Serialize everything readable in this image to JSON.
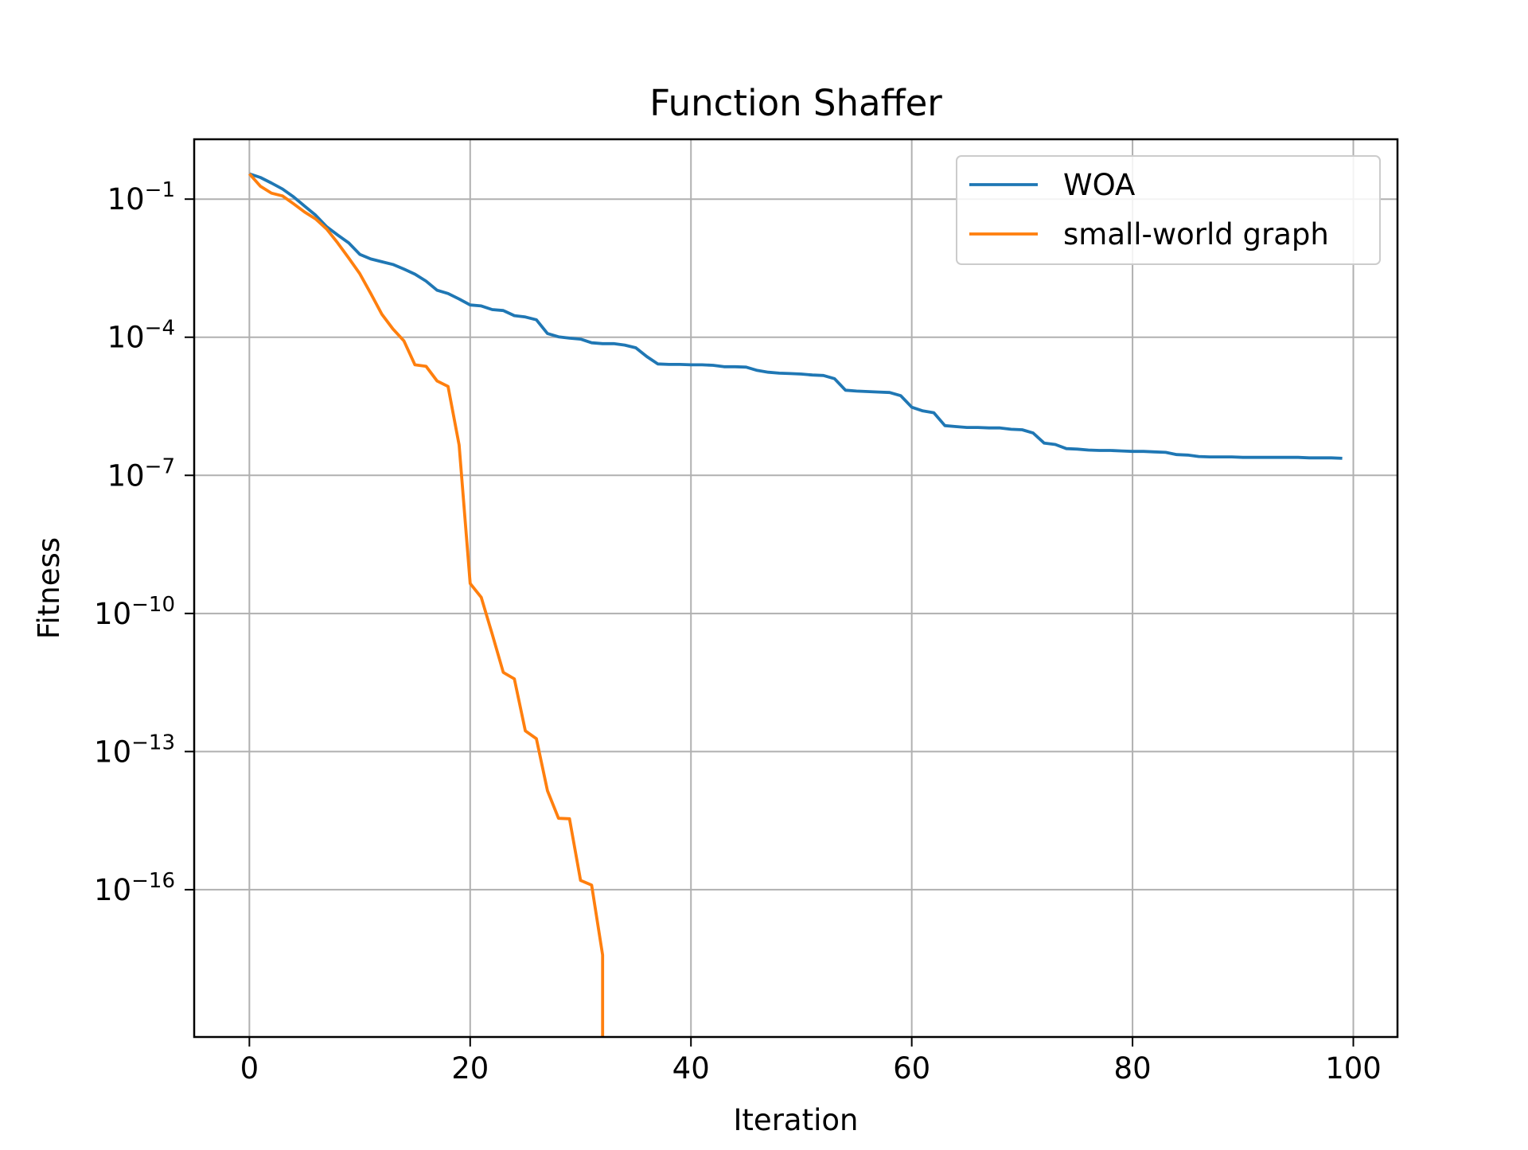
{
  "chart_data": {
    "type": "line",
    "title": "Function Shaffer",
    "xlabel": "Iteration",
    "ylabel": "Fitness",
    "yscale": "log",
    "xlim": [
      -5,
      104
    ],
    "ylim_exponent": [
      -19.2,
      0.3
    ],
    "grid": true,
    "legend_position": "top-right",
    "x_ticks": [
      {
        "value": 0,
        "label": "0"
      },
      {
        "value": 20,
        "label": "20"
      },
      {
        "value": 40,
        "label": "40"
      },
      {
        "value": 60,
        "label": "60"
      },
      {
        "value": 80,
        "label": "80"
      },
      {
        "value": 100,
        "label": "100"
      }
    ],
    "y_ticks": [
      {
        "exponent": -1,
        "base": "10",
        "sup": "−1"
      },
      {
        "exponent": -4,
        "base": "10",
        "sup": "−4"
      },
      {
        "exponent": -7,
        "base": "10",
        "sup": "−7"
      },
      {
        "exponent": -10,
        "base": "10",
        "sup": "−10"
      },
      {
        "exponent": -13,
        "base": "10",
        "sup": "−13"
      },
      {
        "exponent": -16,
        "base": "10",
        "sup": "−16"
      }
    ],
    "series": [
      {
        "name": "WOA",
        "color": "#1f77b4",
        "x": [
          0,
          1,
          2,
          3,
          4,
          5,
          6,
          7,
          8,
          9,
          10,
          11,
          12,
          13,
          14,
          15,
          16,
          17,
          18,
          19,
          20,
          21,
          22,
          23,
          24,
          25,
          26,
          27,
          28,
          29,
          30,
          31,
          32,
          33,
          34,
          35,
          36,
          37,
          38,
          39,
          40,
          41,
          42,
          43,
          44,
          45,
          46,
          47,
          48,
          49,
          50,
          51,
          52,
          53,
          54,
          55,
          56,
          57,
          58,
          59,
          60,
          61,
          62,
          63,
          64,
          65,
          66,
          67,
          68,
          69,
          70,
          71,
          72,
          73,
          74,
          75,
          76,
          77,
          78,
          79,
          80,
          81,
          82,
          83,
          84,
          85,
          86,
          87,
          88,
          89,
          90,
          91,
          92,
          93,
          94,
          95,
          96,
          97,
          98,
          99
        ],
        "log10_y": [
          -0.45,
          -0.53,
          -0.65,
          -0.78,
          -0.95,
          -1.15,
          -1.35,
          -1.6,
          -1.78,
          -1.95,
          -2.2,
          -2.3,
          -2.36,
          -2.42,
          -2.52,
          -2.63,
          -2.78,
          -2.98,
          -3.05,
          -3.17,
          -3.3,
          -3.32,
          -3.4,
          -3.42,
          -3.53,
          -3.56,
          -3.62,
          -3.92,
          -3.99,
          -4.02,
          -4.04,
          -4.12,
          -4.14,
          -4.14,
          -4.17,
          -4.23,
          -4.42,
          -4.58,
          -4.59,
          -4.59,
          -4.6,
          -4.6,
          -4.61,
          -4.64,
          -4.64,
          -4.65,
          -4.72,
          -4.76,
          -4.78,
          -4.79,
          -4.8,
          -4.82,
          -4.83,
          -4.9,
          -5.15,
          -5.17,
          -5.18,
          -5.19,
          -5.2,
          -5.27,
          -5.52,
          -5.6,
          -5.64,
          -5.92,
          -5.94,
          -5.96,
          -5.96,
          -5.97,
          -5.97,
          -6.0,
          -6.01,
          -6.08,
          -6.3,
          -6.33,
          -6.42,
          -6.43,
          -6.45,
          -6.46,
          -6.46,
          -6.47,
          -6.48,
          -6.48,
          -6.49,
          -6.5,
          -6.55,
          -6.56,
          -6.59,
          -6.6,
          -6.6,
          -6.6,
          -6.61,
          -6.61,
          -6.61,
          -6.61,
          -6.61,
          -6.61,
          -6.62,
          -6.62,
          -6.62,
          -6.63
        ]
      },
      {
        "name": "small-world graph",
        "color": "#ff7f0e",
        "x": [
          0,
          1,
          2,
          3,
          4,
          5,
          6,
          7,
          8,
          9,
          10,
          11,
          12,
          13,
          14,
          15,
          16,
          17,
          18,
          19,
          20,
          21,
          22,
          23,
          24,
          25,
          26,
          27,
          28,
          29,
          30,
          31,
          32,
          32
        ],
        "log10_y": [
          -0.45,
          -0.72,
          -0.87,
          -0.93,
          -1.1,
          -1.28,
          -1.43,
          -1.65,
          -1.95,
          -2.28,
          -2.62,
          -3.05,
          -3.5,
          -3.82,
          -4.08,
          -4.6,
          -4.63,
          -4.95,
          -5.07,
          -6.34,
          -9.35,
          -9.65,
          -10.45,
          -11.28,
          -11.42,
          -12.55,
          -12.72,
          -13.85,
          -14.45,
          -14.46,
          -15.8,
          -15.9,
          -17.42,
          -19.2
        ]
      }
    ]
  }
}
